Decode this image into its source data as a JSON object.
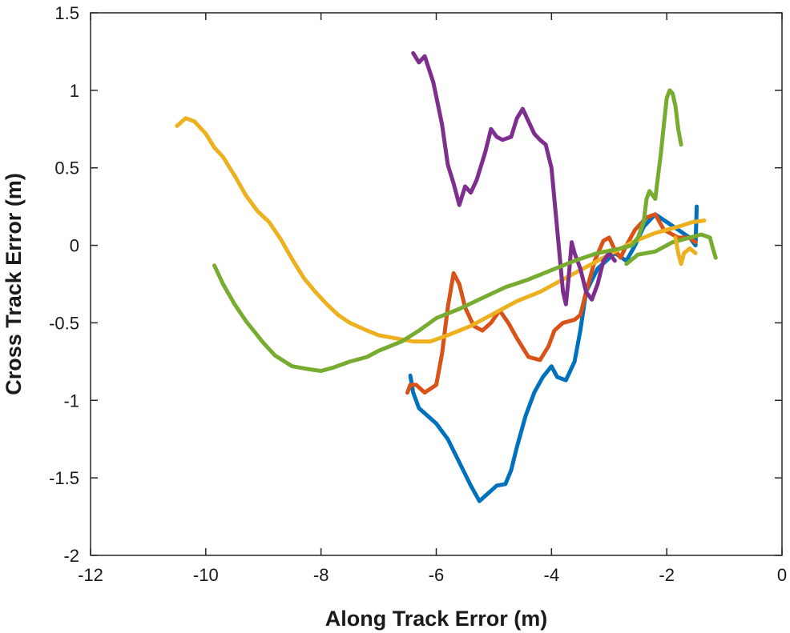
{
  "chart_data": {
    "type": "line",
    "title": "",
    "xlabel": "Along Track Error (m)",
    "ylabel": "Cross Track Error (m)",
    "xlim": [
      -12,
      0
    ],
    "ylim": [
      -2,
      1.5
    ],
    "xticks": [
      -12,
      -10,
      -8,
      -6,
      -4,
      -2,
      0
    ],
    "yticks": [
      -2,
      -1.5,
      -1,
      -0.5,
      0,
      0.5,
      1,
      1.5
    ],
    "xtick_labels": [
      "-12",
      "-10",
      "-8",
      "-6",
      "-4",
      "-2",
      "0"
    ],
    "ytick_labels": [
      "-2",
      "-1.5",
      "-1",
      "-0.5",
      "0",
      "0.5",
      "1",
      "1.5"
    ],
    "grid": false,
    "legend": "none",
    "series": [
      {
        "color": "#0072BD",
        "points": [
          [
            -6.45,
            -0.84
          ],
          [
            -6.4,
            -0.95
          ],
          [
            -6.3,
            -1.05
          ],
          [
            -6.0,
            -1.15
          ],
          [
            -5.8,
            -1.25
          ],
          [
            -5.6,
            -1.4
          ],
          [
            -5.4,
            -1.55
          ],
          [
            -5.25,
            -1.65
          ],
          [
            -5.1,
            -1.6
          ],
          [
            -4.95,
            -1.55
          ],
          [
            -4.8,
            -1.54
          ],
          [
            -4.7,
            -1.45
          ],
          [
            -4.6,
            -1.3
          ],
          [
            -4.45,
            -1.1
          ],
          [
            -4.3,
            -0.95
          ],
          [
            -4.15,
            -0.85
          ],
          [
            -4.0,
            -0.78
          ],
          [
            -3.9,
            -0.85
          ],
          [
            -3.75,
            -0.87
          ],
          [
            -3.6,
            -0.75
          ],
          [
            -3.5,
            -0.55
          ],
          [
            -3.4,
            -0.3
          ],
          [
            -3.2,
            -0.15
          ],
          [
            -3.05,
            -0.1
          ],
          [
            -2.9,
            -0.05
          ],
          [
            -2.7,
            -0.1
          ],
          [
            -2.55,
            0.0
          ],
          [
            -2.4,
            0.12
          ],
          [
            -2.2,
            0.2
          ],
          [
            -2.0,
            0.15
          ],
          [
            -1.8,
            0.1
          ],
          [
            -1.6,
            0.05
          ],
          [
            -1.5,
            0.0
          ],
          [
            -1.48,
            0.25
          ]
        ]
      },
      {
        "color": "#D95319",
        "points": [
          [
            -6.5,
            -0.95
          ],
          [
            -6.45,
            -0.9
          ],
          [
            -6.35,
            -0.9
          ],
          [
            -6.2,
            -0.95
          ],
          [
            -6.0,
            -0.9
          ],
          [
            -5.9,
            -0.7
          ],
          [
            -5.8,
            -0.4
          ],
          [
            -5.7,
            -0.18
          ],
          [
            -5.6,
            -0.25
          ],
          [
            -5.5,
            -0.4
          ],
          [
            -5.35,
            -0.52
          ],
          [
            -5.2,
            -0.55
          ],
          [
            -5.05,
            -0.5
          ],
          [
            -4.9,
            -0.42
          ],
          [
            -4.75,
            -0.5
          ],
          [
            -4.6,
            -0.6
          ],
          [
            -4.4,
            -0.72
          ],
          [
            -4.2,
            -0.74
          ],
          [
            -4.05,
            -0.65
          ],
          [
            -3.95,
            -0.55
          ],
          [
            -3.8,
            -0.5
          ],
          [
            -3.6,
            -0.48
          ],
          [
            -3.5,
            -0.45
          ],
          [
            -3.4,
            -0.3
          ],
          [
            -3.25,
            -0.1
          ],
          [
            -3.1,
            0.03
          ],
          [
            -3.0,
            0.05
          ],
          [
            -2.9,
            -0.03
          ],
          [
            -2.8,
            -0.08
          ],
          [
            -2.7,
            0.0
          ],
          [
            -2.55,
            0.1
          ],
          [
            -2.35,
            0.18
          ],
          [
            -2.2,
            0.2
          ],
          [
            -2.05,
            0.1
          ],
          [
            -1.95,
            0.08
          ],
          [
            -1.8,
            0.05
          ],
          [
            -1.6,
            0.05
          ],
          [
            -1.5,
            0.02
          ]
        ]
      },
      {
        "color": "#EDB120",
        "points": [
          [
            -10.5,
            0.77
          ],
          [
            -10.35,
            0.82
          ],
          [
            -10.2,
            0.8
          ],
          [
            -10.0,
            0.72
          ],
          [
            -9.85,
            0.63
          ],
          [
            -9.7,
            0.57
          ],
          [
            -9.5,
            0.45
          ],
          [
            -9.3,
            0.32
          ],
          [
            -9.1,
            0.22
          ],
          [
            -8.9,
            0.15
          ],
          [
            -8.7,
            0.04
          ],
          [
            -8.5,
            -0.09
          ],
          [
            -8.3,
            -0.21
          ],
          [
            -8.1,
            -0.3
          ],
          [
            -7.9,
            -0.38
          ],
          [
            -7.7,
            -0.45
          ],
          [
            -7.5,
            -0.5
          ],
          [
            -7.2,
            -0.55
          ],
          [
            -7.0,
            -0.58
          ],
          [
            -6.7,
            -0.6
          ],
          [
            -6.4,
            -0.62
          ],
          [
            -6.1,
            -0.62
          ],
          [
            -5.8,
            -0.58
          ],
          [
            -5.4,
            -0.52
          ],
          [
            -5.0,
            -0.44
          ],
          [
            -4.6,
            -0.36
          ],
          [
            -4.2,
            -0.3
          ],
          [
            -3.8,
            -0.22
          ],
          [
            -3.4,
            -0.14
          ],
          [
            -3.0,
            -0.06
          ],
          [
            -2.6,
            0.02
          ],
          [
            -2.2,
            0.08
          ],
          [
            -1.8,
            0.12
          ],
          [
            -1.55,
            0.15
          ],
          [
            -1.35,
            0.16
          ]
        ]
      },
      {
        "color": "#7E2F8E",
        "points": [
          [
            -6.4,
            1.24
          ],
          [
            -6.3,
            1.18
          ],
          [
            -6.2,
            1.22
          ],
          [
            -6.05,
            1.05
          ],
          [
            -5.9,
            0.78
          ],
          [
            -5.8,
            0.52
          ],
          [
            -5.7,
            0.4
          ],
          [
            -5.6,
            0.26
          ],
          [
            -5.5,
            0.38
          ],
          [
            -5.4,
            0.34
          ],
          [
            -5.3,
            0.42
          ],
          [
            -5.15,
            0.6
          ],
          [
            -5.05,
            0.75
          ],
          [
            -4.95,
            0.7
          ],
          [
            -4.85,
            0.68
          ],
          [
            -4.7,
            0.7
          ],
          [
            -4.6,
            0.82
          ],
          [
            -4.5,
            0.88
          ],
          [
            -4.4,
            0.8
          ],
          [
            -4.3,
            0.72
          ],
          [
            -4.2,
            0.68
          ],
          [
            -4.1,
            0.65
          ],
          [
            -4.0,
            0.5
          ],
          [
            -3.95,
            0.3
          ],
          [
            -3.9,
            0.1
          ],
          [
            -3.85,
            -0.1
          ],
          [
            -3.8,
            -0.3
          ],
          [
            -3.75,
            -0.38
          ],
          [
            -3.7,
            -0.2
          ],
          [
            -3.65,
            0.02
          ],
          [
            -3.6,
            -0.05
          ],
          [
            -3.5,
            -0.15
          ],
          [
            -3.4,
            -0.3
          ],
          [
            -3.3,
            -0.35
          ],
          [
            -3.2,
            -0.25
          ],
          [
            -3.1,
            -0.1
          ],
          [
            -3.0,
            -0.05
          ],
          [
            -2.9,
            -0.1
          ]
        ]
      },
      {
        "color": "#77AC30",
        "points": [
          [
            -9.85,
            -0.13
          ],
          [
            -9.7,
            -0.25
          ],
          [
            -9.5,
            -0.38
          ],
          [
            -9.3,
            -0.49
          ],
          [
            -9.0,
            -0.63
          ],
          [
            -8.8,
            -0.71
          ],
          [
            -8.5,
            -0.78
          ],
          [
            -8.2,
            -0.8
          ],
          [
            -8.0,
            -0.81
          ],
          [
            -7.8,
            -0.79
          ],
          [
            -7.5,
            -0.75
          ],
          [
            -7.2,
            -0.72
          ],
          [
            -7.0,
            -0.68
          ],
          [
            -6.6,
            -0.62
          ],
          [
            -6.3,
            -0.55
          ],
          [
            -6.0,
            -0.47
          ],
          [
            -5.6,
            -0.41
          ],
          [
            -5.2,
            -0.34
          ],
          [
            -4.8,
            -0.27
          ],
          [
            -4.4,
            -0.22
          ],
          [
            -4.0,
            -0.16
          ],
          [
            -3.6,
            -0.1
          ],
          [
            -3.2,
            -0.05
          ],
          [
            -2.8,
            -0.02
          ],
          [
            -2.6,
            0.0
          ],
          [
            -2.5,
            0.05
          ],
          [
            -2.4,
            0.15
          ],
          [
            -2.35,
            0.3
          ],
          [
            -2.3,
            0.35
          ],
          [
            -2.2,
            0.3
          ],
          [
            -2.15,
            0.45
          ],
          [
            -2.1,
            0.6
          ],
          [
            -2.05,
            0.78
          ],
          [
            -2.0,
            0.95
          ],
          [
            -1.95,
            1.0
          ],
          [
            -1.9,
            0.98
          ],
          [
            -1.85,
            0.9
          ],
          [
            -1.8,
            0.75
          ],
          [
            -1.75,
            0.65
          ]
        ]
      },
      {
        "color": "#77AC30",
        "points": [
          [
            -2.7,
            -0.12
          ],
          [
            -2.5,
            -0.06
          ],
          [
            -2.2,
            -0.04
          ],
          [
            -1.9,
            0.02
          ],
          [
            -1.6,
            0.05
          ],
          [
            -1.4,
            0.07
          ],
          [
            -1.25,
            0.05
          ],
          [
            -1.2,
            -0.02
          ],
          [
            -1.15,
            -0.08
          ]
        ]
      },
      {
        "color": "#EDB120",
        "points": [
          [
            -1.85,
            0.05
          ],
          [
            -1.8,
            -0.05
          ],
          [
            -1.75,
            -0.12
          ],
          [
            -1.7,
            -0.05
          ],
          [
            -1.6,
            -0.02
          ],
          [
            -1.5,
            -0.05
          ]
        ]
      }
    ]
  }
}
